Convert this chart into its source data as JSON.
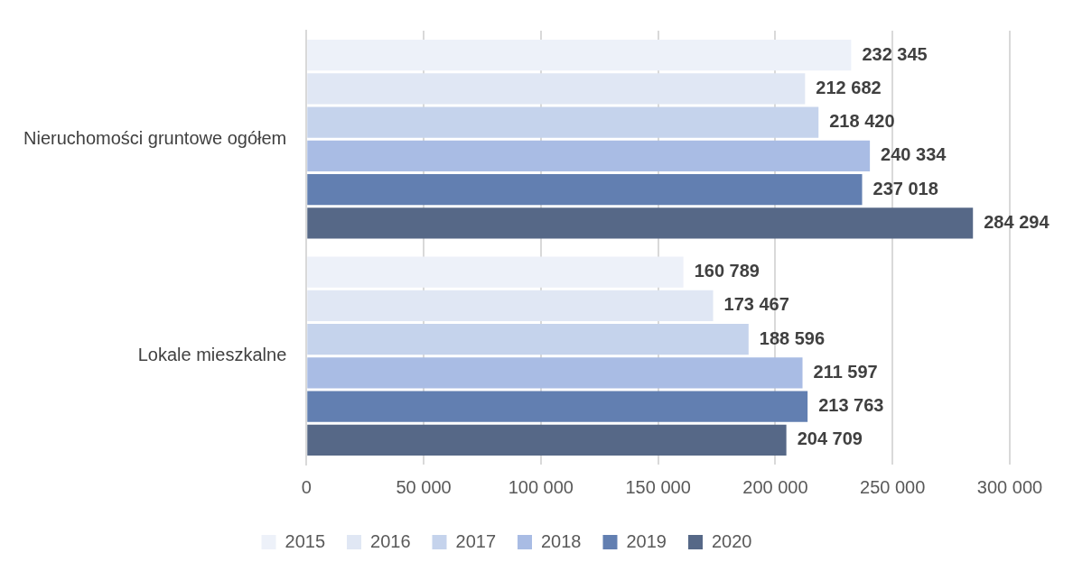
{
  "chart_data": {
    "type": "bar",
    "orientation": "horizontal",
    "categories": [
      "Nieruchomości gruntowe ogółem",
      "Lokale mieszkalne"
    ],
    "series": [
      {
        "name": "2015",
        "color": "#edf1f9",
        "values": [
          232345,
          160789
        ],
        "value_labels": [
          "232 345",
          "160 789"
        ]
      },
      {
        "name": "2016",
        "color": "#e0e7f4",
        "values": [
          212682,
          173467
        ],
        "value_labels": [
          "212 682",
          "173 467"
        ]
      },
      {
        "name": "2017",
        "color": "#c5d3ec",
        "values": [
          218420,
          188596
        ],
        "value_labels": [
          "218 420",
          "188 596"
        ]
      },
      {
        "name": "2018",
        "color": "#a9bce4",
        "values": [
          240334,
          211597
        ],
        "value_labels": [
          "240 334",
          "211 597"
        ]
      },
      {
        "name": "2019",
        "color": "#627fb1",
        "values": [
          237018,
          213763
        ],
        "value_labels": [
          "237 018",
          "213 763"
        ]
      },
      {
        "name": "2020",
        "color": "#566887",
        "values": [
          284294,
          204709
        ],
        "value_labels": [
          "284 294",
          "204 709"
        ]
      }
    ],
    "xlim": [
      0,
      300000
    ],
    "xticks": [
      0,
      {
        "value": 50000,
        "label": "50 000"
      },
      {
        "value": 100000,
        "label": "100 000"
      },
      {
        "value": 150000,
        "label": "150 000"
      },
      {
        "value": 200000,
        "label": "200 000"
      },
      {
        "value": 250000,
        "label": "250 000"
      },
      {
        "value": 300000,
        "label": "300 000"
      }
    ],
    "grid": "x",
    "legend": "bottom"
  }
}
